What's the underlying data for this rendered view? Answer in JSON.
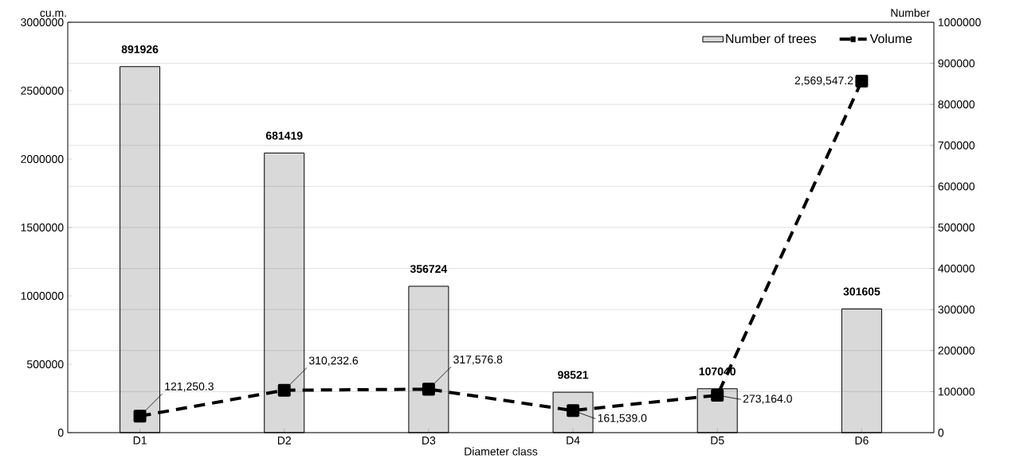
{
  "chart_data": {
    "type": "bar",
    "categories": [
      "D1",
      "D2",
      "D3",
      "D4",
      "D5",
      "D6"
    ],
    "xlabel": "Diameter class",
    "ylabel": "cu.m.",
    "y2label": "Number",
    "series": [
      {
        "name": "Number of trees",
        "axis": "y2",
        "color": "#000000",
        "values": [
          891926,
          681419,
          356724,
          98521,
          107040,
          301605
        ],
        "value_labels": [
          "891926",
          "681419",
          "356724",
          "98521",
          "107040",
          "301605"
        ]
      },
      {
        "name": "Volume",
        "type": "line",
        "axis": "y",
        "color": "#000000",
        "marker": "square",
        "line_style": "dashed",
        "values": [
          121250.3,
          310232.6,
          317576.8,
          161539.0,
          273164.0,
          2569547.2
        ],
        "value_labels": [
          "121,250.3",
          "310,232.6",
          "317,576.8",
          "161,539.0",
          "273,164.0",
          "2,569,547.2"
        ]
      }
    ],
    "ylim": [
      0,
      3000000
    ],
    "yticks": [
      0,
      500000,
      1000000,
      1500000,
      2000000,
      2500000,
      3000000
    ],
    "y2lim": [
      0,
      1000000
    ],
    "y2ticks": [
      0,
      100000,
      200000,
      300000,
      400000,
      500000,
      600000,
      700000,
      800000,
      900000,
      1000000
    ],
    "grid": true,
    "legend": "top right"
  }
}
